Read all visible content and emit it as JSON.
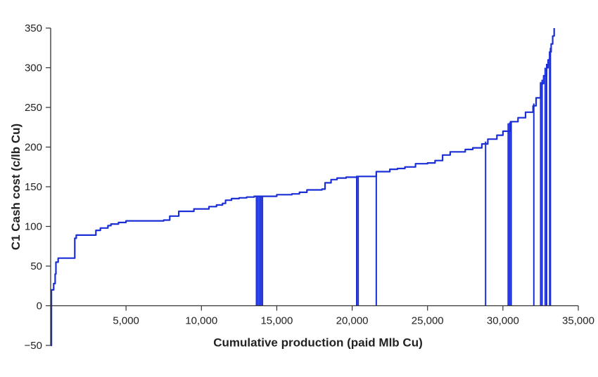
{
  "chart_data": {
    "type": "area",
    "title": "",
    "xlabel": "Cumulative production (paid Mlb Cu)",
    "ylabel": "C1 Cash cost (c/lb Cu)",
    "xlim": [
      0,
      35000
    ],
    "ylim": [
      -50,
      350
    ],
    "x_ticks": [
      5000,
      10000,
      15000,
      20000,
      25000,
      30000,
      35000
    ],
    "x_tick_labels": [
      "5,000",
      "10,000",
      "15,000",
      "20,000",
      "25,000",
      "30,000",
      "35,000"
    ],
    "y_ticks": [
      -50,
      0,
      50,
      100,
      150,
      200,
      250,
      300,
      350
    ],
    "y_tick_labels": [
      "−50",
      "0",
      "50",
      "100",
      "150",
      "200",
      "250",
      "300",
      "350"
    ],
    "grid": false,
    "legend": "none",
    "line_color": "#1a2fd6",
    "series": [
      {
        "x": [
          0,
          50,
          150,
          200,
          300,
          350,
          500,
          1500,
          1600,
          1700,
          2900,
          3000,
          3300,
          3800,
          4000,
          4500,
          5000,
          7000,
          7500,
          7900,
          8500,
          9500,
          10000,
          10500,
          11000,
          11400,
          11600,
          12000,
          12500,
          13000,
          13500,
          14000,
          15000,
          16000,
          16500,
          17000,
          18000,
          18200,
          18600,
          19000,
          19600,
          20300,
          21600,
          22500,
          23000,
          23500,
          24200,
          25000,
          25500,
          26000,
          26500,
          27500,
          28000,
          28600,
          29000,
          29600,
          30000,
          30500,
          31000,
          31500,
          32000,
          32200,
          32500,
          32700,
          32900,
          33000,
          33100,
          33200,
          33300,
          33400
        ],
        "y": [
          -50,
          20,
          20,
          28,
          40,
          55,
          60,
          60,
          85,
          89,
          89,
          95,
          98,
          101,
          103,
          105,
          107,
          107,
          108,
          113,
          119,
          122,
          122,
          125,
          127,
          129,
          133,
          135,
          136,
          137,
          138,
          138,
          140,
          141,
          143,
          146,
          147,
          155,
          159,
          161,
          162,
          163,
          169,
          172,
          173,
          175,
          179,
          180,
          183,
          190,
          194,
          197,
          199,
          204,
          210,
          215,
          220,
          232,
          237,
          244,
          252,
          262,
          280,
          290,
          300,
          310,
          320,
          330,
          340,
          350
        ]
      }
    ],
    "vertical_drops": [
      {
        "x": 13650,
        "y": 138
      },
      {
        "x": 13750,
        "y": 138
      },
      {
        "x": 13850,
        "y": 138
      },
      {
        "x": 13950,
        "y": 138
      },
      {
        "x": 14050,
        "y": 138
      },
      {
        "x": 20300,
        "y": 162
      },
      {
        "x": 20400,
        "y": 163
      },
      {
        "x": 21600,
        "y": 169
      },
      {
        "x": 28850,
        "y": 207
      },
      {
        "x": 30350,
        "y": 230
      },
      {
        "x": 30450,
        "y": 231
      },
      {
        "x": 30550,
        "y": 232
      },
      {
        "x": 32050,
        "y": 255
      },
      {
        "x": 32500,
        "y": 282
      },
      {
        "x": 32600,
        "y": 285
      },
      {
        "x": 32800,
        "y": 300
      },
      {
        "x": 32900,
        "y": 305
      },
      {
        "x": 33100,
        "y": 320
      },
      {
        "x": 33150,
        "y": 325
      }
    ]
  }
}
